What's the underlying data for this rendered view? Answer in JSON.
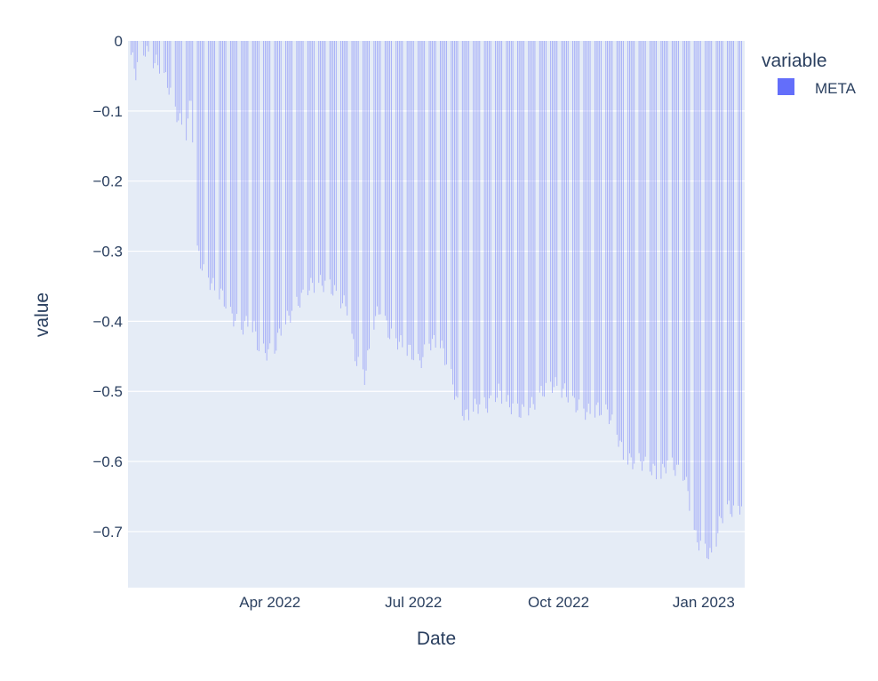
{
  "chart_data": {
    "type": "bar",
    "xlabel": "Date",
    "ylabel": "value",
    "x_range": [
      "2022-01-01",
      "2023-01-27"
    ],
    "ylim": [
      -0.78,
      0.0
    ],
    "y_ticks": [
      {
        "value": 0,
        "label": "0"
      },
      {
        "value": -0.1,
        "label": "−0.1"
      },
      {
        "value": -0.2,
        "label": "−0.2"
      },
      {
        "value": -0.3,
        "label": "−0.3"
      },
      {
        "value": -0.4,
        "label": "−0.4"
      },
      {
        "value": -0.5,
        "label": "−0.5"
      },
      {
        "value": -0.6,
        "label": "−0.6"
      },
      {
        "value": -0.7,
        "label": "−0.7"
      }
    ],
    "x_ticks": [
      {
        "date": "2022-04-01",
        "label": "Apr 2022"
      },
      {
        "date": "2022-07-01",
        "label": "Jul 2022"
      },
      {
        "date": "2022-10-01",
        "label": "Oct 2022"
      },
      {
        "date": "2023-01-01",
        "label": "Jan 2023"
      }
    ],
    "legend": {
      "title": "variable",
      "placement": "top-right"
    },
    "grid": true,
    "series": [
      {
        "name": "META",
        "color": "#636efa",
        "points": [
          [
            "2022-01-03",
            -0.02
          ],
          [
            "2022-01-06",
            -0.045
          ],
          [
            "2022-01-10",
            -0.01
          ],
          [
            "2022-01-14",
            -0.02
          ],
          [
            "2022-01-18",
            -0.03
          ],
          [
            "2022-01-21",
            -0.035
          ],
          [
            "2022-01-26",
            -0.06
          ],
          [
            "2022-01-31",
            -0.1
          ],
          [
            "2022-02-04",
            -0.12
          ],
          [
            "2022-02-07",
            -0.13
          ],
          [
            "2022-02-10",
            -0.08
          ],
          [
            "2022-02-14",
            -0.3
          ],
          [
            "2022-02-18",
            -0.33
          ],
          [
            "2022-02-24",
            -0.35
          ],
          [
            "2022-03-01",
            -0.36
          ],
          [
            "2022-03-07",
            -0.39
          ],
          [
            "2022-03-14",
            -0.41
          ],
          [
            "2022-03-18",
            -0.4
          ],
          [
            "2022-03-22",
            -0.41
          ],
          [
            "2022-03-25",
            -0.44
          ],
          [
            "2022-03-29",
            -0.445
          ],
          [
            "2022-04-04",
            -0.44
          ],
          [
            "2022-04-08",
            -0.41
          ],
          [
            "2022-04-14",
            -0.39
          ],
          [
            "2022-04-20",
            -0.37
          ],
          [
            "2022-04-26",
            -0.35
          ],
          [
            "2022-05-02",
            -0.345
          ],
          [
            "2022-05-09",
            -0.35
          ],
          [
            "2022-05-16",
            -0.37
          ],
          [
            "2022-05-20",
            -0.38
          ],
          [
            "2022-05-25",
            -0.45
          ],
          [
            "2022-05-31",
            -0.48
          ],
          [
            "2022-06-06",
            -0.4
          ],
          [
            "2022-06-10",
            -0.38
          ],
          [
            "2022-06-16",
            -0.42
          ],
          [
            "2022-06-22",
            -0.43
          ],
          [
            "2022-06-28",
            -0.44
          ],
          [
            "2022-07-05",
            -0.46
          ],
          [
            "2022-07-11",
            -0.43
          ],
          [
            "2022-07-18",
            -0.43
          ],
          [
            "2022-07-25",
            -0.48
          ],
          [
            "2022-07-29",
            -0.52
          ],
          [
            "2022-08-03",
            -0.535
          ],
          [
            "2022-08-10",
            -0.52
          ],
          [
            "2022-08-17",
            -0.52
          ],
          [
            "2022-08-24",
            -0.5
          ],
          [
            "2022-08-31",
            -0.52
          ],
          [
            "2022-09-07",
            -0.53
          ],
          [
            "2022-09-14",
            -0.52
          ],
          [
            "2022-09-21",
            -0.5
          ],
          [
            "2022-09-28",
            -0.49
          ],
          [
            "2022-10-05",
            -0.5
          ],
          [
            "2022-10-12",
            -0.52
          ],
          [
            "2022-10-19",
            -0.53
          ],
          [
            "2022-10-26",
            -0.525
          ],
          [
            "2022-11-01",
            -0.53
          ],
          [
            "2022-11-07",
            -0.56
          ],
          [
            "2022-11-11",
            -0.59
          ],
          [
            "2022-11-16",
            -0.6
          ],
          [
            "2022-11-22",
            -0.6
          ],
          [
            "2022-11-29",
            -0.61
          ],
          [
            "2022-12-05",
            -0.62
          ],
          [
            "2022-12-09",
            -0.6
          ],
          [
            "2022-12-14",
            -0.61
          ],
          [
            "2022-12-20",
            -0.62
          ],
          [
            "2022-12-27",
            -0.71
          ],
          [
            "2023-01-03",
            -0.73
          ],
          [
            "2023-01-06",
            -0.735
          ],
          [
            "2023-01-09",
            -0.71
          ],
          [
            "2023-01-12",
            -0.68
          ],
          [
            "2023-01-16",
            -0.665
          ],
          [
            "2023-01-19",
            -0.67
          ],
          [
            "2023-01-22",
            -0.675
          ],
          [
            "2023-01-25",
            -0.66
          ]
        ]
      }
    ]
  }
}
